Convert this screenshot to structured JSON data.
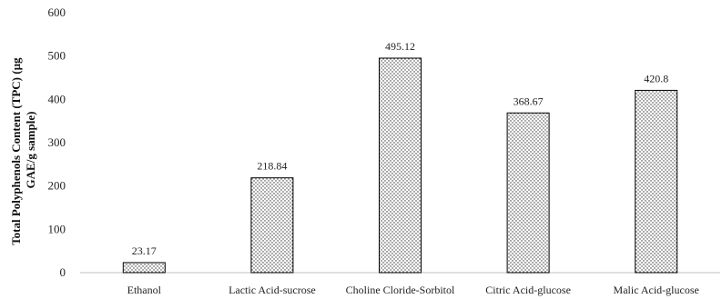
{
  "chart_data": {
    "type": "bar",
    "categories": [
      "Ethanol",
      "Lactic Acid-sucrose",
      "Choline Cloride-Sorbitol",
      "Citric Acid-glucose",
      "Malic Acid-glucose"
    ],
    "values": [
      23.17,
      218.84,
      495.12,
      368.67,
      420.8
    ],
    "data_labels": [
      "23.17",
      "218.84",
      "495.12",
      "368.67",
      "420.8"
    ],
    "ylabel_lines": [
      "Total Polyphenols Content (TPC) (µg",
      "GAE/g sample)"
    ],
    "ylim": [
      0,
      600
    ],
    "yticks": [
      0,
      100,
      200,
      300,
      400,
      500,
      600
    ],
    "grid": false,
    "bar_fill": "dotted-pattern",
    "colors": {
      "bar_edge": "#000000",
      "dot": "#333333",
      "axis": "#bfbfbf"
    }
  }
}
